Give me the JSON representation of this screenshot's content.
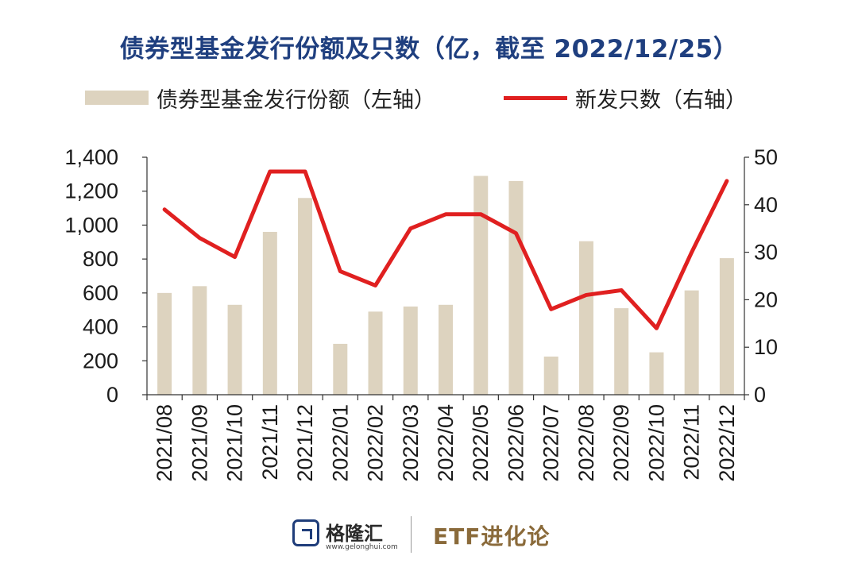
{
  "chart_data": {
    "type": "bar+line",
    "title": "债券型基金发行份额及只数（亿，截至 2022/12/25）",
    "categories": [
      "2021/08",
      "2021/09",
      "2021/10",
      "2021/11",
      "2021/12",
      "2022/01",
      "2022/02",
      "2022/03",
      "2022/04",
      "2022/05",
      "2022/06",
      "2022/07",
      "2022/08",
      "2022/09",
      "2022/10",
      "2022/11",
      "2022/12"
    ],
    "series": [
      {
        "name": "债券型基金发行份额（左轴）",
        "type": "bar",
        "axis": "left",
        "color": "#ddd3bf",
        "values": [
          600,
          640,
          530,
          960,
          1160,
          300,
          490,
          520,
          530,
          1290,
          1260,
          225,
          905,
          510,
          250,
          615,
          805
        ]
      },
      {
        "name": "新发只数（右轴）",
        "type": "line",
        "axis": "right",
        "color": "#e02020",
        "values": [
          39,
          33,
          29,
          47,
          47,
          26,
          23,
          35,
          38,
          38,
          34,
          18,
          21,
          22,
          14,
          30,
          45
        ]
      }
    ],
    "y_left": {
      "min": 0,
      "max": 1400,
      "ticks": [
        0,
        200,
        400,
        600,
        800,
        1000,
        1200,
        1400
      ],
      "tick_labels": [
        "0",
        "200",
        "400",
        "600",
        "800",
        "1,000",
        "1,200",
        "1,400"
      ]
    },
    "y_right": {
      "min": 0,
      "max": 50,
      "ticks": [
        0,
        10,
        20,
        30,
        40,
        50
      ],
      "tick_labels": [
        "0",
        "10",
        "20",
        "30",
        "40",
        "50"
      ]
    },
    "grid": false,
    "legend_position": "top"
  },
  "legend": {
    "bar_label": "债券型基金发行份额（左轴）",
    "line_label": "新发只数（右轴）"
  },
  "footer": {
    "logo_name": "格隆汇",
    "logo_url": "www.gelonghui.com",
    "brand": "ETF进化论"
  },
  "colors": {
    "title": "#1f3f7f",
    "bar": "#ddd3bf",
    "line": "#e02020",
    "brand": "#8a6a3a"
  }
}
